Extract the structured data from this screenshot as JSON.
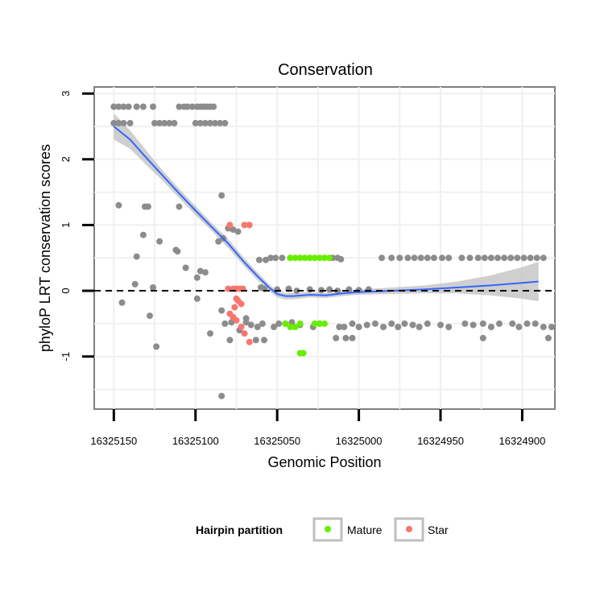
{
  "chart_data": {
    "type": "scatter",
    "title": "Conservation",
    "xlabel": "Genomic Position",
    "ylabel": "phyloP LRT conservation scores",
    "x_reversed": true,
    "xlim": [
      16325162,
      16324880
    ],
    "ylim": [
      -1.8,
      3.1
    ],
    "xticks": [
      16325150,
      16325100,
      16325050,
      16325000,
      16324950,
      16324900
    ],
    "xtick_labels": [
      "16325150",
      "16325100",
      "16325050",
      "16325000",
      "16324950",
      "16324900"
    ],
    "yticks": [
      -1,
      0,
      1,
      2,
      3
    ],
    "ytick_labels": [
      "-1",
      "0",
      "1",
      "2",
      "3"
    ],
    "reference_line": {
      "y": 0,
      "style": "dashed",
      "color": "#000000"
    },
    "grid": true,
    "legend": {
      "title": "Hairpin partition",
      "position": "bottom",
      "entries": [
        {
          "label": "Mature",
          "color": "#66ee00"
        },
        {
          "label": "Star",
          "color": "#f8766d"
        }
      ]
    },
    "colors": {
      "other": "#8c8c8c",
      "mature": "#66ee00",
      "star": "#f8766d",
      "smooth": "#3366ff",
      "ribbon": "#bfbfbf",
      "panel_grid": "#f0f0f0",
      "panel_border": "#7f7f7f"
    },
    "series": [
      {
        "name": "Other",
        "points": [
          [
            16325150,
            2.8
          ],
          [
            16325147,
            2.8
          ],
          [
            16325144,
            2.8
          ],
          [
            16325141,
            2.8
          ],
          [
            16325136,
            2.8
          ],
          [
            16325132,
            2.8
          ],
          [
            16325126,
            2.8
          ],
          [
            16325110,
            2.8
          ],
          [
            16325107,
            2.8
          ],
          [
            16325105,
            2.8
          ],
          [
            16325102,
            2.8
          ],
          [
            16325099,
            2.8
          ],
          [
            16325097,
            2.8
          ],
          [
            16325095,
            2.8
          ],
          [
            16325093,
            2.8
          ],
          [
            16325091,
            2.8
          ],
          [
            16325089,
            2.8
          ],
          [
            16325150,
            2.55
          ],
          [
            16325147,
            2.55
          ],
          [
            16325144,
            2.55
          ],
          [
            16325140,
            2.55
          ],
          [
            16325125,
            2.55
          ],
          [
            16325122,
            2.55
          ],
          [
            16325119,
            2.55
          ],
          [
            16325116,
            2.55
          ],
          [
            16325113,
            2.55
          ],
          [
            16325100,
            2.55
          ],
          [
            16325097,
            2.55
          ],
          [
            16325094,
            2.55
          ],
          [
            16325091,
            2.55
          ],
          [
            16325088,
            2.55
          ],
          [
            16325085,
            2.55
          ],
          [
            16325082,
            2.55
          ],
          [
            16325084,
            1.45
          ],
          [
            16325147,
            1.3
          ],
          [
            16325131,
            1.28
          ],
          [
            16325129,
            1.28
          ],
          [
            16325110,
            1.28
          ],
          [
            16325080,
            0.95
          ],
          [
            16325077,
            0.93
          ],
          [
            16325074,
            0.9
          ],
          [
            16325122,
            0.75
          ],
          [
            16325111,
            0.6
          ],
          [
            16325097,
            0.3
          ],
          [
            16325094,
            0.28
          ],
          [
            16325106,
            0.35
          ],
          [
            16325099,
            0.2
          ],
          [
            16325136,
            0.52
          ],
          [
            16325112,
            0.62
          ],
          [
            16325132,
            0.85
          ],
          [
            16325145,
            -0.18
          ],
          [
            16325126,
            0.05
          ],
          [
            16325137,
            0.1
          ],
          [
            16325128,
            -0.38
          ],
          [
            16325084,
            -0.3
          ],
          [
            16325079,
            -0.75
          ],
          [
            16325124,
            -0.85
          ],
          [
            16325099,
            -0.12
          ],
          [
            16325082,
            -0.5
          ],
          [
            16325091,
            -0.65
          ],
          [
            16325084,
            -1.6
          ],
          [
            16325086,
            0.75
          ],
          [
            16325083,
            0.8
          ],
          [
            16325078,
            -0.48
          ],
          [
            16325073,
            -0.6
          ],
          [
            16325069,
            -0.42
          ],
          [
            16325061,
            0.47
          ],
          [
            16325057,
            0.47
          ],
          [
            16325054,
            0.5
          ],
          [
            16325051,
            0.5
          ],
          [
            16325047,
            0.5
          ],
          [
            16325016,
            0.5
          ],
          [
            16325013,
            0.5
          ],
          [
            16325011,
            0.48
          ],
          [
            16324986,
            0.5
          ],
          [
            16324980,
            0.5
          ],
          [
            16324975,
            0.5
          ],
          [
            16324970,
            0.5
          ],
          [
            16324966,
            0.5
          ],
          [
            16324962,
            0.5
          ],
          [
            16324958,
            0.5
          ],
          [
            16324954,
            0.5
          ],
          [
            16324949,
            0.5
          ],
          [
            16324945,
            0.5
          ],
          [
            16324937,
            0.5
          ],
          [
            16324932,
            0.5
          ],
          [
            16324927,
            0.5
          ],
          [
            16324923,
            0.5
          ],
          [
            16324919,
            0.5
          ],
          [
            16324915,
            0.5
          ],
          [
            16324911,
            0.5
          ],
          [
            16324907,
            0.5
          ],
          [
            16324903,
            0.5
          ],
          [
            16324899,
            0.5
          ],
          [
            16324895,
            0.5
          ],
          [
            16324891,
            0.5
          ],
          [
            16324887,
            0.5
          ],
          [
            16325060,
            0.05
          ],
          [
            16325058,
            0.03
          ],
          [
            16325050,
            0.02
          ],
          [
            16325043,
            0.03
          ],
          [
            16325038,
            0.0
          ],
          [
            16325030,
            0.02
          ],
          [
            16325023,
            0.01
          ],
          [
            16325018,
            0.02
          ],
          [
            16325013,
            0.0
          ],
          [
            16325006,
            0.02
          ],
          [
            16325000,
            0.01
          ],
          [
            16324994,
            0.02
          ],
          [
            16325069,
            -0.48
          ],
          [
            16325066,
            -0.52
          ],
          [
            16325062,
            -0.55
          ],
          [
            16325059,
            -0.5
          ],
          [
            16325052,
            -0.55
          ],
          [
            16325049,
            -0.5
          ],
          [
            16325041,
            -0.48
          ],
          [
            16325036,
            -0.52
          ],
          [
            16325028,
            -0.55
          ],
          [
            16325024,
            -0.5
          ],
          [
            16325012,
            -0.55
          ],
          [
            16325009,
            -0.55
          ],
          [
            16325004,
            -0.5
          ],
          [
            16325000,
            -0.55
          ],
          [
            16324995,
            -0.52
          ],
          [
            16324990,
            -0.5
          ],
          [
            16324985,
            -0.55
          ],
          [
            16324980,
            -0.5
          ],
          [
            16324976,
            -0.55
          ],
          [
            16324972,
            -0.5
          ],
          [
            16324967,
            -0.52
          ],
          [
            16324963,
            -0.55
          ],
          [
            16324958,
            -0.5
          ],
          [
            16324950,
            -0.52
          ],
          [
            16324945,
            -0.55
          ],
          [
            16324935,
            -0.5
          ],
          [
            16324930,
            -0.52
          ],
          [
            16324924,
            -0.5
          ],
          [
            16324919,
            -0.55
          ],
          [
            16324914,
            -0.5
          ],
          [
            16324906,
            -0.5
          ],
          [
            16324902,
            -0.55
          ],
          [
            16324897,
            -0.5
          ],
          [
            16324892,
            -0.5
          ],
          [
            16324887,
            -0.55
          ],
          [
            16324882,
            -0.55
          ],
          [
            16325063,
            -0.75
          ],
          [
            16325058,
            -0.75
          ],
          [
            16325014,
            -0.72
          ],
          [
            16325008,
            -0.72
          ],
          [
            16325004,
            -0.72
          ],
          [
            16324924,
            -0.72
          ],
          [
            16324884,
            -0.72
          ]
        ]
      },
      {
        "name": "Mature",
        "points": [
          [
            16325042,
            0.5
          ],
          [
            16325039,
            0.5
          ],
          [
            16325036,
            0.5
          ],
          [
            16325033,
            0.5
          ],
          [
            16325030,
            0.5
          ],
          [
            16325027,
            0.5
          ],
          [
            16325024,
            0.5
          ],
          [
            16325021,
            0.5
          ],
          [
            16325018,
            0.5
          ],
          [
            16325045,
            -0.5
          ],
          [
            16325042,
            -0.55
          ],
          [
            16325039,
            -0.55
          ],
          [
            16325036,
            -0.5
          ],
          [
            16325027,
            -0.5
          ],
          [
            16325024,
            -0.5
          ],
          [
            16325021,
            -0.5
          ],
          [
            16325036,
            -0.95
          ],
          [
            16325034,
            -0.95
          ]
        ]
      },
      {
        "name": "Star",
        "points": [
          [
            16325079,
            1.0
          ],
          [
            16325070,
            1.0
          ],
          [
            16325067,
            1.0
          ],
          [
            16325080,
            0.03
          ],
          [
            16325077,
            0.03
          ],
          [
            16325075,
            0.03
          ],
          [
            16325073,
            0.03
          ],
          [
            16325071,
            0.03
          ],
          [
            16325075,
            -0.12
          ],
          [
            16325074,
            -0.15
          ],
          [
            16325072,
            -0.2
          ],
          [
            16325076,
            -0.25
          ],
          [
            16325079,
            -0.35
          ],
          [
            16325077,
            -0.4
          ],
          [
            16325075,
            -0.45
          ],
          [
            16325072,
            -0.55
          ],
          [
            16325070,
            -0.65
          ],
          [
            16325067,
            -0.78
          ]
        ]
      }
    ],
    "smooth": {
      "x": [
        16325150,
        16325140,
        16325130,
        16325120,
        16325110,
        16325100,
        16325090,
        16325080,
        16325070,
        16325062,
        16325055,
        16325050,
        16325045,
        16325040,
        16325030,
        16325020,
        16325010,
        16325000,
        16324980,
        16324960,
        16324940,
        16324920,
        16324900,
        16324890
      ],
      "y": [
        2.5,
        2.3,
        2.02,
        1.75,
        1.48,
        1.22,
        0.97,
        0.72,
        0.43,
        0.22,
        0.05,
        -0.05,
        -0.08,
        -0.08,
        -0.06,
        -0.07,
        -0.04,
        -0.02,
        0.0,
        0.02,
        0.05,
        0.08,
        0.12,
        0.14
      ],
      "lower": [
        2.3,
        2.16,
        1.91,
        1.67,
        1.41,
        1.15,
        0.91,
        0.65,
        0.37,
        0.16,
        0.0,
        -0.1,
        -0.13,
        -0.13,
        -0.1,
        -0.11,
        -0.08,
        -0.06,
        -0.05,
        -0.04,
        -0.04,
        -0.07,
        -0.12,
        -0.16
      ],
      "upper": [
        2.7,
        2.44,
        2.13,
        1.83,
        1.55,
        1.29,
        1.03,
        0.79,
        0.49,
        0.28,
        0.1,
        0.0,
        -0.03,
        -0.03,
        -0.02,
        -0.03,
        0.0,
        0.02,
        0.05,
        0.08,
        0.14,
        0.23,
        0.36,
        0.44
      ]
    }
  }
}
